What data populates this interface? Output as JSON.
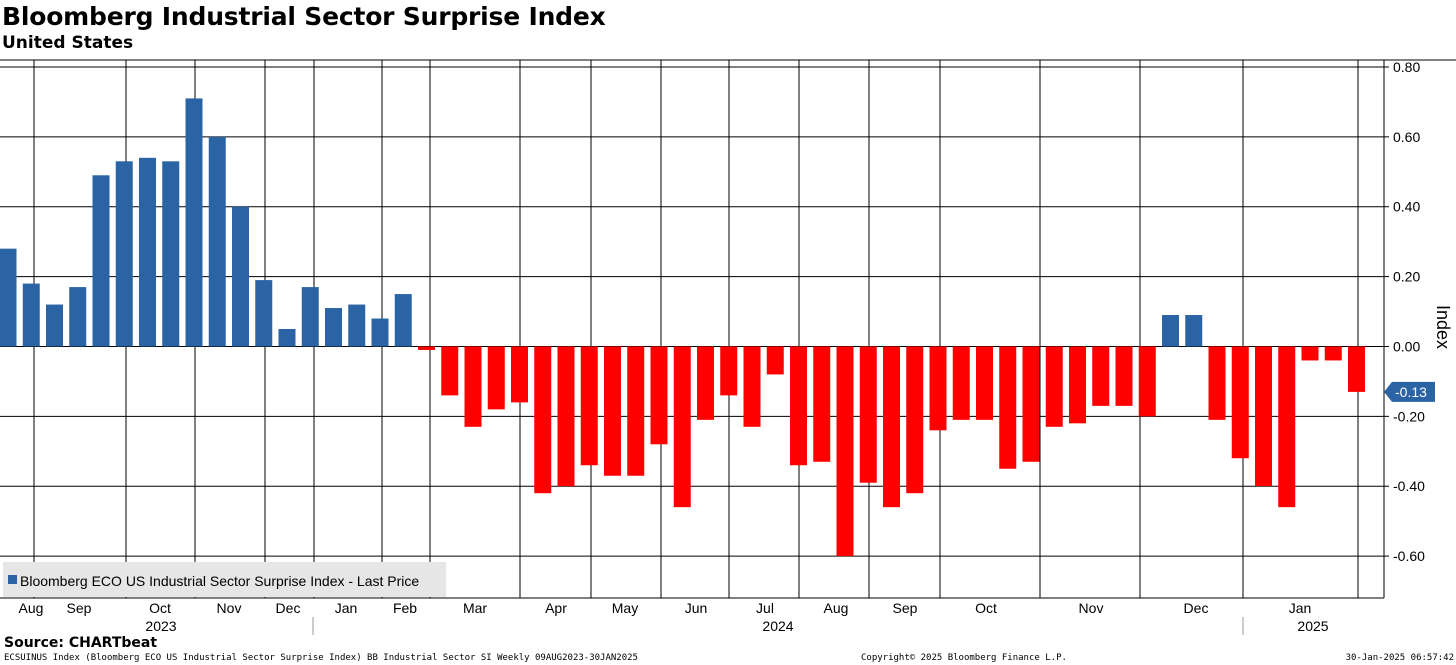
{
  "title": "Bloomberg Industrial Sector Surprise Index",
  "subtitle": "United States",
  "source": "Source: CHARTbeat",
  "footer": {
    "left": "ECSUINUS Index (Bloomberg ECO US Industrial Sector Surprise Index) BB Industrial Sector SI  Weekly 09AUG2023-30JAN2025",
    "middle": "Copyright© 2025 Bloomberg Finance L.P.",
    "right": "30-Jan-2025 06:57:42"
  },
  "colors": {
    "positive": "#2a64a4",
    "negative": "#ff0000",
    "grid": "#000000",
    "last_label_bg": "#2a64a4"
  },
  "chart_data": {
    "type": "bar",
    "title": "Bloomberg Industrial Sector Surprise Index",
    "subtitle": "United States",
    "ylabel": "Index",
    "ylim": [
      -0.72,
      0.82
    ],
    "yticks": [
      0.8,
      0.6,
      0.4,
      0.2,
      0.0,
      -0.2,
      -0.4,
      -0.6
    ],
    "ytick_labels": [
      "0.80",
      "0.60",
      "0.40",
      "0.20",
      "0.00",
      "-0.20",
      "-0.40",
      "-0.60"
    ],
    "frequency": "Weekly",
    "period": "09AUG2023-30JAN2025",
    "legend": {
      "label": "Bloomberg ECO US Industrial Sector Surprise Index - Last Price",
      "placement": "bottom-left"
    },
    "last_value_label": "-0.13",
    "months": [
      "Aug",
      "Sep",
      "Oct",
      "Nov",
      "Dec",
      "Jan",
      "Feb",
      "Mar",
      "Apr",
      "May",
      "Jun",
      "Jul",
      "Aug",
      "Sep",
      "Oct",
      "Nov",
      "Dec",
      "Jan"
    ],
    "years": [
      "2023",
      "2024",
      "2025"
    ],
    "series": [
      {
        "name": "Bloomberg ECO US Industrial Sector Surprise Index - Last Price",
        "values": [
          0.28,
          0.18,
          0.12,
          0.17,
          0.49,
          0.53,
          0.54,
          0.53,
          0.71,
          0.6,
          0.4,
          0.19,
          0.05,
          0.17,
          0.11,
          0.12,
          0.08,
          0.15,
          -0.01,
          -0.14,
          -0.23,
          -0.18,
          -0.16,
          -0.42,
          -0.4,
          -0.34,
          -0.37,
          -0.37,
          -0.28,
          -0.46,
          -0.21,
          -0.14,
          -0.23,
          -0.08,
          -0.34,
          -0.33,
          -0.6,
          -0.39,
          -0.46,
          -0.42,
          -0.24,
          -0.21,
          -0.21,
          -0.35,
          -0.33,
          -0.23,
          -0.22,
          -0.17,
          -0.17,
          -0.2,
          0.09,
          0.09,
          -0.21,
          -0.32,
          -0.4,
          -0.46,
          -0.04,
          -0.04,
          -0.13
        ]
      }
    ]
  }
}
